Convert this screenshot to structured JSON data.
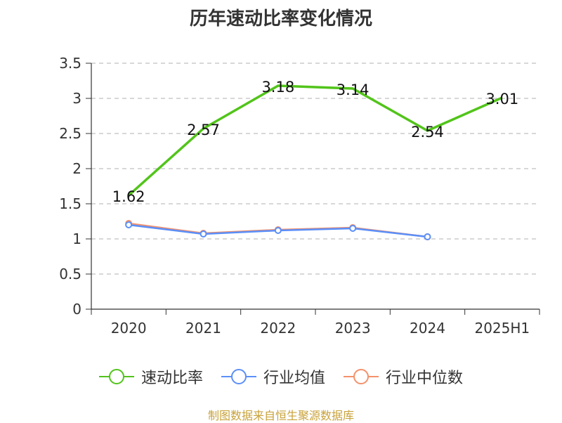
{
  "chart_data": {
    "type": "line",
    "title": "历年速动比率变化情况",
    "categories": [
      "2020",
      "2021",
      "2022",
      "2023",
      "2024",
      "2025H1"
    ],
    "y_ticks": [
      "0",
      "0.5",
      "1",
      "1.5",
      "2",
      "2.5",
      "3",
      "3.5"
    ],
    "ylim": [
      0,
      3.5
    ],
    "grid": true,
    "legend_position": "bottom",
    "series": [
      {
        "name": "速动比率",
        "color": "#52c41a",
        "values": [
          1.62,
          2.57,
          3.18,
          3.14,
          2.54,
          3.01
        ],
        "labels": [
          "1.62",
          "2.57",
          "3.18",
          "3.14",
          "2.54",
          "3.01"
        ],
        "show_labels": true
      },
      {
        "name": "行业均值",
        "color": "#5b8ff9",
        "values": [
          1.2,
          1.07,
          1.12,
          1.15,
          1.03,
          null
        ],
        "show_labels": false
      },
      {
        "name": "行业中位数",
        "color": "#f4916b",
        "values": [
          1.22,
          1.08,
          1.13,
          1.16,
          1.03,
          null
        ],
        "show_labels": false
      }
    ]
  },
  "footer": {
    "source": "制图数据来自恒生聚源数据库"
  }
}
